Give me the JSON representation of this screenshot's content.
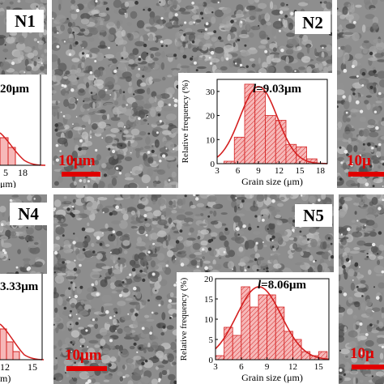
{
  "figure": {
    "panels": [
      {
        "id": "N1",
        "label": "N1"
      },
      {
        "id": "N2",
        "label": "N2"
      },
      {
        "id": "N4",
        "label": "N4"
      },
      {
        "id": "N5",
        "label": "N5"
      }
    ],
    "scale_bar_text": "10μm",
    "partial_values": {
      "n1_mean_fragment": "20μm",
      "n1_ticks": [
        "5",
        "18"
      ],
      "n1_unit_fragment": "μm)",
      "n4_mean_fragment": "3.33μm",
      "n4_ticks": [
        "12",
        "15"
      ],
      "n4_unit_fragment": "m)",
      "top_right_scale_fragment": "10μ",
      "bottom_right_scale_fragment": "10μ"
    }
  },
  "chart_data": [
    {
      "type": "bar",
      "panel": "N2",
      "mean_symbol": "l",
      "mean_text": "=9.03μm",
      "xlabel": "Grain size (μm)",
      "ylabel": "Relative frequency (%)",
      "xticks": [
        "3",
        "6",
        "9",
        "12",
        "15",
        "18"
      ],
      "yticks": [
        "0",
        "10",
        "20",
        "30"
      ],
      "xlim": [
        3,
        19
      ],
      "ylim": [
        0,
        35
      ],
      "bin_edges": [
        4,
        5.5,
        7,
        8.5,
        10,
        11.5,
        13,
        14.5,
        16,
        17.5
      ],
      "values": [
        1,
        11,
        33,
        30,
        20,
        18,
        8,
        7,
        2
      ],
      "fit_curve": {
        "type": "gaussian",
        "mean": 9.03,
        "sigma": 2.7,
        "peak": 32
      },
      "colors": {
        "bar_fill": "#f6b8b8",
        "bar_edge": "#d42020",
        "curve": "#d42020"
      }
    },
    {
      "type": "bar",
      "panel": "N5",
      "mean_symbol": "l",
      "mean_text": "=8.06μm",
      "xlabel": "Grain size (μm)",
      "ylabel": "Relative frequency (%)",
      "xticks": [
        "3",
        "6",
        "9",
        "12",
        "15"
      ],
      "yticks": [
        "0",
        "5",
        "10",
        "15",
        "20"
      ],
      "xlim": [
        3,
        16.2
      ],
      "ylim": [
        0,
        20
      ],
      "bin_edges": [
        3,
        4,
        5,
        6,
        7,
        8,
        9,
        10,
        11,
        12,
        13,
        14,
        15,
        16
      ],
      "values": [
        1,
        8,
        6,
        18,
        13,
        16,
        16,
        13,
        7,
        5,
        2,
        1,
        2
      ],
      "fit_curve": {
        "type": "gaussian",
        "mean": 8.06,
        "sigma": 2.6,
        "peak": 18
      },
      "colors": {
        "bar_fill": "#f6b8b8",
        "bar_edge": "#d42020",
        "curve": "#d42020"
      }
    }
  ]
}
